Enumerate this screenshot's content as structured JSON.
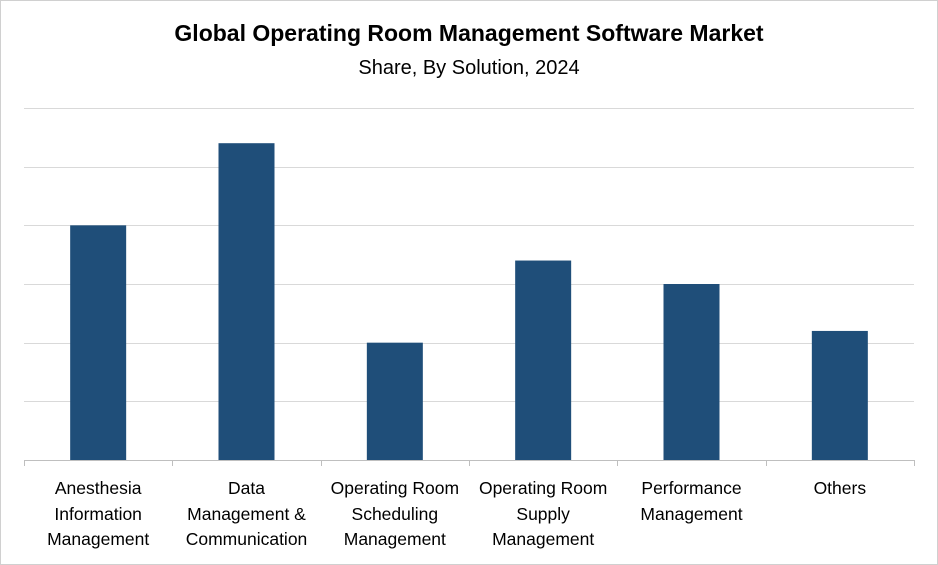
{
  "chart_data": {
    "type": "bar",
    "title": "Global Operating Room Management Software Market",
    "subtitle": "Share, By Solution, 2024",
    "xlabel": "",
    "ylabel": "",
    "categories": [
      "Anesthesia Information Management",
      "Data Management & Communication",
      "Operating Room Scheduling Management",
      "Operating Room Supply Management",
      "Performance Management",
      "Others"
    ],
    "category_lines": [
      [
        "Anesthesia",
        "Information",
        "Management"
      ],
      [
        "Data",
        "Management &",
        "Communication"
      ],
      [
        "Operating Room",
        "Scheduling",
        "Management"
      ],
      [
        "Operating Room",
        "Supply",
        "Management"
      ],
      [
        "Performance",
        "Management"
      ],
      [
        "Others"
      ]
    ],
    "values": [
      20,
      27,
      10,
      17,
      15,
      11
    ],
    "ylim": [
      0,
      30
    ],
    "grid": true,
    "legend": "none",
    "bar_color": "#1f4e79",
    "grid_color": "#d9d9d9",
    "axis_color": "#bfbfbf"
  }
}
